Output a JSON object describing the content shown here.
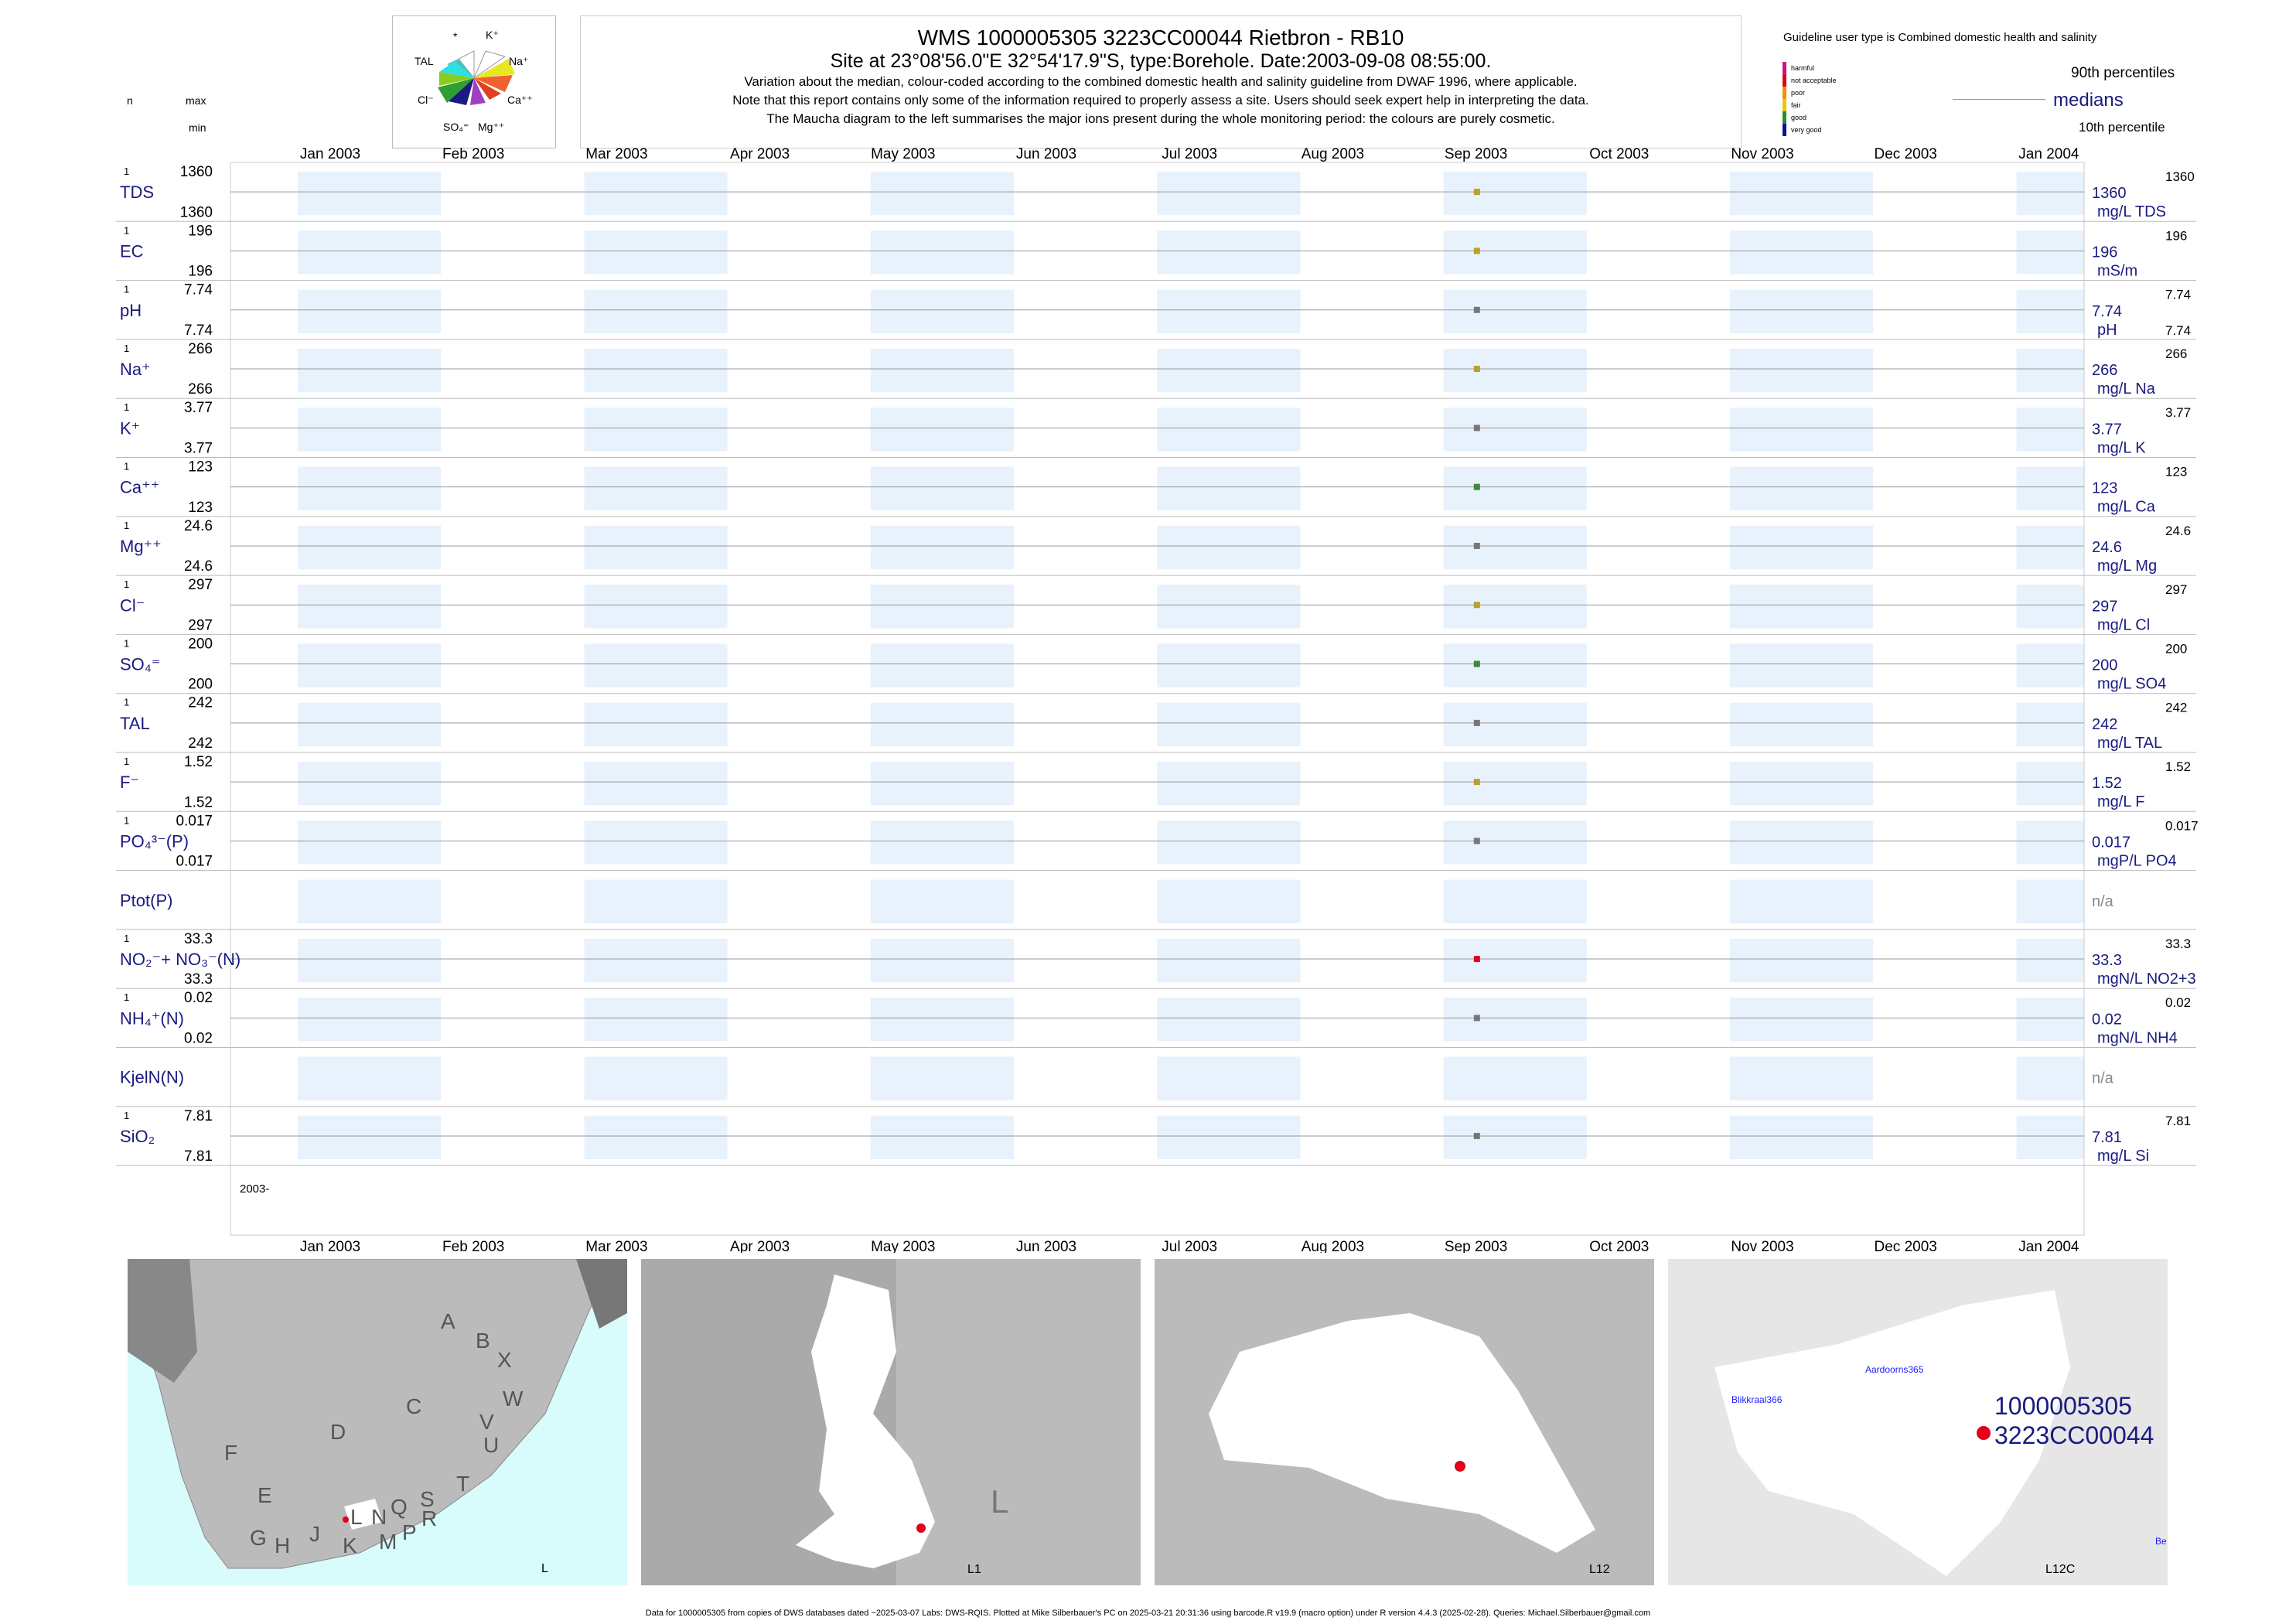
{
  "header": {
    "title": "WMS 1000005305 3223CC00044 Rietbron - RB10",
    "subtitle": "Site at 23°08'56.0\"E 32°54'17.9\"S, type:Borehole. Date:2003-09-08 08:55:00.",
    "note1": "Variation about the median,  colour-coded according to the combined domestic health and salinity guideline from DWAF 1996, where applicable.",
    "note2": "Note that this report contains only some of the information required to properly assess a site. Users should seek expert help in interpreting the data.",
    "note3": "The Maucha diagram to the left summarises the major ions present during the whole monitoring period: the colours are purely cosmetic.",
    "guideline": "Guideline user type is Combined domestic health and salinity"
  },
  "left_header": {
    "n": "n",
    "max": "max",
    "min": "min"
  },
  "maucha": {
    "labels": [
      "*",
      "K⁺",
      "TAL",
      "Na⁺",
      "Cl⁻",
      "Ca⁺⁺",
      "SO₄⁼",
      "Mg⁺⁺"
    ]
  },
  "legend": {
    "classes": [
      {
        "label": "harmful",
        "color": "#c71585"
      },
      {
        "label": "not acceptable",
        "color": "#e3001b"
      },
      {
        "label": "poor",
        "color": "#f28e00"
      },
      {
        "label": "fair",
        "color": "#e8c800"
      },
      {
        "label": "good",
        "color": "#2e8b2e"
      },
      {
        "label": "very good",
        "color": "#1010a0"
      }
    ],
    "p90": "90th percentiles",
    "medians": "medians",
    "p10": "10th percentile"
  },
  "chart_data": {
    "type": "scatter",
    "x_axis": {
      "months": [
        "Jan 2003",
        "Feb 2003",
        "Mar 2003",
        "Apr 2003",
        "May 2003",
        "Jun 2003",
        "Jul 2003",
        "Aug 2003",
        "Sep 2003",
        "Oct 2003",
        "Nov 2003",
        "Dec 2003",
        "Jan 2004"
      ],
      "year_label": "2003-"
    },
    "sample_date": "2003-09-08",
    "series": [
      {
        "name": "TDS",
        "n": "1",
        "max": "1360",
        "min": "1360",
        "value": 1360,
        "median": "1360",
        "p90": "1360",
        "p10": "",
        "unit": "mg/L TDS",
        "color": "#b8a02a"
      },
      {
        "name": "EC",
        "n": "1",
        "max": "196",
        "min": "196",
        "value": 196,
        "median": "196",
        "p90": "196",
        "p10": "",
        "unit": "mS/m",
        "color": "#b8a02a"
      },
      {
        "name": "pH",
        "n": "1",
        "max": "7.74",
        "min": "7.74",
        "value": 7.74,
        "median": "7.74",
        "p90": "7.74",
        "p10": "7.74",
        "unit": "pH",
        "color": "#777777"
      },
      {
        "name": "Na⁺",
        "n": "1",
        "max": "266",
        "min": "266",
        "value": 266,
        "median": "266",
        "p90": "266",
        "p10": "",
        "unit": "mg/L Na",
        "color": "#b8a02a"
      },
      {
        "name": "K⁺",
        "n": "1",
        "max": "3.77",
        "min": "3.77",
        "value": 3.77,
        "median": "3.77",
        "p90": "3.77",
        "p10": "",
        "unit": "mg/L K",
        "color": "#777777"
      },
      {
        "name": "Ca⁺⁺",
        "n": "1",
        "max": "123",
        "min": "123",
        "value": 123,
        "median": "123",
        "p90": "123",
        "p10": "",
        "unit": "mg/L Ca",
        "color": "#3a8a3a"
      },
      {
        "name": "Mg⁺⁺",
        "n": "1",
        "max": "24.6",
        "min": "24.6",
        "value": 24.6,
        "median": "24.6",
        "p90": "24.6",
        "p10": "",
        "unit": "mg/L Mg",
        "color": "#777777"
      },
      {
        "name": "Cl⁻",
        "n": "1",
        "max": "297",
        "min": "297",
        "value": 297,
        "median": "297",
        "p90": "297",
        "p10": "",
        "unit": "mg/L Cl",
        "color": "#b8a02a"
      },
      {
        "name": "SO₄⁼",
        "n": "1",
        "max": "200",
        "min": "200",
        "value": 200,
        "median": "200",
        "p90": "200",
        "p10": "",
        "unit": "mg/L SO4",
        "color": "#3a8a3a"
      },
      {
        "name": "TAL",
        "n": "1",
        "max": "242",
        "min": "242",
        "value": 242,
        "median": "242",
        "p90": "242",
        "p10": "",
        "unit": "mg/L TAL",
        "color": "#777777"
      },
      {
        "name": "F⁻",
        "n": "1",
        "max": "1.52",
        "min": "1.52",
        "value": 1.52,
        "median": "1.52",
        "p90": "1.52",
        "p10": "",
        "unit": "mg/L F",
        "color": "#b8a02a"
      },
      {
        "name": "PO₄³⁻(P)",
        "n": "1",
        "max": "0.017",
        "min": "0.017",
        "value": 0.017,
        "median": "0.017",
        "p90": "0.017",
        "p10": "",
        "unit": "mgP/L PO4",
        "color": "#777777"
      },
      {
        "name": "Ptot(P)",
        "n": "",
        "max": "",
        "min": "",
        "value": null,
        "median": "n/a",
        "p90": "",
        "p10": "",
        "unit": "",
        "color": "#777777"
      },
      {
        "name": "NO₂⁻+ NO₃⁻(N)",
        "n": "1",
        "max": "33.3",
        "min": "33.3",
        "value": 33.3,
        "median": "33.3",
        "p90": "33.3",
        "p10": "",
        "unit": "mgN/L NO2+3",
        "color": "#e3001b"
      },
      {
        "name": "NH₄⁺(N)",
        "n": "1",
        "max": "0.02",
        "min": "0.02",
        "value": 0.02,
        "median": "0.02",
        "p90": "0.02",
        "p10": "",
        "unit": "mgN/L NH4",
        "color": "#777777"
      },
      {
        "name": "KjelN(N)",
        "n": "",
        "max": "",
        "min": "",
        "value": null,
        "median": "n/a",
        "p90": "",
        "p10": "",
        "unit": "",
        "color": "#777777"
      },
      {
        "name": "SiO₂",
        "n": "1",
        "max": "7.81",
        "min": "7.81",
        "value": 7.81,
        "median": "7.81",
        "p90": "7.81",
        "p10": "",
        "unit": "mg/L Si",
        "color": "#777777"
      }
    ]
  },
  "maps": {
    "map1": {
      "corner": "L",
      "regions": [
        "A",
        "B",
        "X",
        "W",
        "C",
        "V",
        "U",
        "D",
        "F",
        "E",
        "G",
        "H",
        "J",
        "K",
        "L",
        "M",
        "N",
        "P",
        "Q",
        "R",
        "S",
        "T"
      ]
    },
    "map2": {
      "corner": "L1",
      "letter": "L"
    },
    "map3": {
      "corner": "L12"
    },
    "map4": {
      "corner": "L12C",
      "place1": "Aardoorns365",
      "place2": "Blikkraal366",
      "site1": "1000005305",
      "site2": "3223CC00044",
      "edge": "Be"
    }
  },
  "footer": "Data for 1000005305 from copies of DWS databases dated ~2025-03-07 Labs: DWS-RQIS. Plotted at Mike Silberbauer's PC on 2025-03-21 20:31:36 using barcode.R v19.9 (macro option) under R version 4.4.3 (2025-02-28). Queries: Michael.Silberbauer@gmail.com"
}
